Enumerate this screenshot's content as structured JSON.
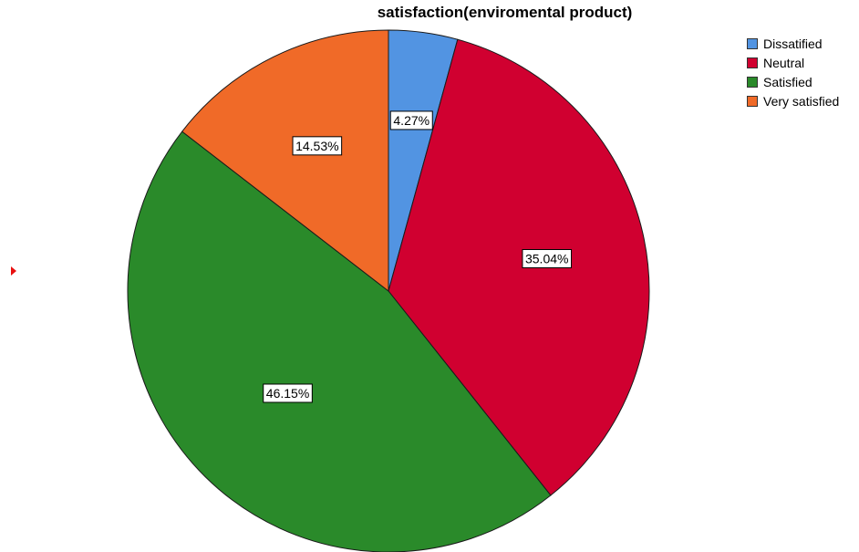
{
  "chart_data": {
    "type": "pie",
    "title": "satisfaction(enviromental product)",
    "categories": [
      "Dissatified",
      "Neutral",
      "Satisfied",
      "Very satisfied"
    ],
    "values": [
      4.27,
      35.04,
      46.15,
      14.53
    ],
    "labels": [
      "4.27%",
      "35.04%",
      "46.15%",
      "14.53%"
    ],
    "colors": [
      "#5294e2",
      "#d00030",
      "#2a8a2a",
      "#f06a28"
    ],
    "legend_position": "top-right",
    "start_angle": "12 o'clock",
    "direction": "clockwise"
  },
  "selection_marker_color": "#e81010"
}
